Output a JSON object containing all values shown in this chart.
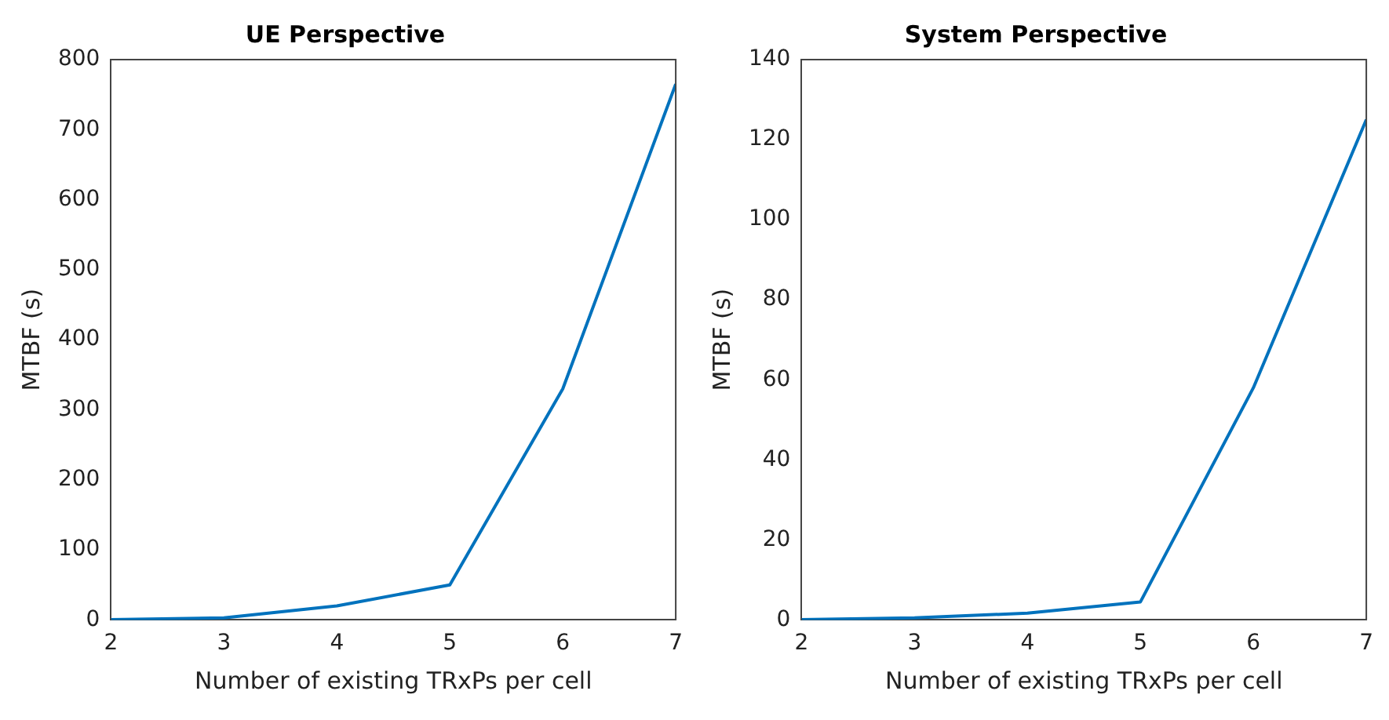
{
  "chart_data": [
    {
      "type": "line",
      "title": "UE Perspective",
      "xlabel": "Number of existing TRxPs per cell",
      "ylabel": "MTBF (s)",
      "x": [
        2,
        3,
        4,
        5,
        6,
        7
      ],
      "series": [
        {
          "color": "#0072bd",
          "values": [
            0.5,
            3,
            20,
            50,
            330,
            765
          ]
        }
      ],
      "xlim": [
        2,
        7
      ],
      "xticks": [
        2,
        3,
        4,
        5,
        6,
        7
      ],
      "ylim": [
        0,
        800
      ],
      "yticks": [
        0,
        100,
        200,
        300,
        400,
        500,
        600,
        700,
        800
      ],
      "grid": false,
      "legend": false,
      "marker": "none",
      "line_style": "solid"
    },
    {
      "type": "line",
      "title": "System Perspective",
      "xlabel": "Number of existing TRxPs per cell",
      "ylabel": "MTBF (s)",
      "x": [
        2,
        3,
        4,
        5,
        6,
        7
      ],
      "series": [
        {
          "color": "#0072bd",
          "values": [
            0.1,
            0.5,
            1.7,
            4.5,
            58,
            125
          ]
        }
      ],
      "xlim": [
        2,
        7
      ],
      "xticks": [
        2,
        3,
        4,
        5,
        6,
        7
      ],
      "ylim": [
        0,
        140
      ],
      "yticks": [
        0,
        20,
        40,
        60,
        80,
        100,
        120,
        140
      ],
      "grid": false,
      "legend": false,
      "marker": "none",
      "line_style": "solid"
    }
  ]
}
